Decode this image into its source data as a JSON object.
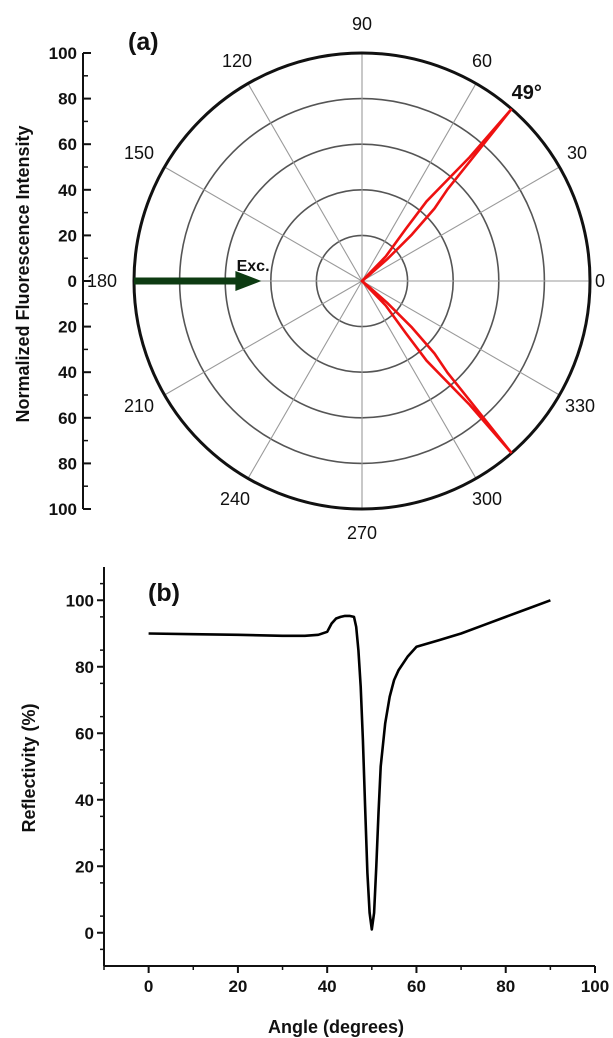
{
  "chart_data": [
    {
      "type": "polar",
      "panel_label": "(a)",
      "ylabel": "Normalized Fluorescence Intensity",
      "r_range": [
        0,
        100
      ],
      "radial_ticks": [
        100,
        80,
        60,
        40,
        20,
        0,
        20,
        40,
        60,
        80,
        100
      ],
      "angle_ticks": [
        0,
        30,
        60,
        90,
        120,
        150,
        180,
        210,
        240,
        270,
        300,
        330
      ],
      "grid": true,
      "annotations": [
        {
          "text": "49°",
          "angle": 49,
          "r": 100
        },
        {
          "text": "Exc.",
          "angle": 180,
          "r": 55
        }
      ],
      "excitation_arrow": {
        "from_angle": 180,
        "r_start": 100,
        "r_end": 45,
        "color": "#0d3b12"
      },
      "series": [
        {
          "color": "#ee1111",
          "points": [
            {
              "angle": 49,
              "r": 100
            },
            {
              "angle": 48,
              "r": 72
            },
            {
              "angle": 47,
              "r": 55
            },
            {
              "angle": 45,
              "r": 45
            },
            {
              "angle": 43,
              "r": 30
            },
            {
              "angle": 41,
              "r": 15
            },
            {
              "angle": 40,
              "r": 5
            },
            {
              "angle": 0,
              "r": 0
            },
            {
              "angle": 46,
              "r": 15
            },
            {
              "angle": 50,
              "r": 30
            },
            {
              "angle": 51,
              "r": 45
            },
            {
              "angle": 50,
              "r": 55
            },
            {
              "angle": 49,
              "r": 72
            },
            {
              "angle": 49,
              "r": 100
            }
          ]
        },
        {
          "color": "#ee1111",
          "points": [
            {
              "angle": 311,
              "r": 100
            },
            {
              "angle": 312,
              "r": 72
            },
            {
              "angle": 313,
              "r": 55
            },
            {
              "angle": 315,
              "r": 45
            },
            {
              "angle": 317,
              "r": 30
            },
            {
              "angle": 319,
              "r": 15
            },
            {
              "angle": 320,
              "r": 5
            },
            {
              "angle": 0,
              "r": 0
            },
            {
              "angle": 314,
              "r": 15
            },
            {
              "angle": 310,
              "r": 30
            },
            {
              "angle": 309,
              "r": 45
            },
            {
              "angle": 310,
              "r": 55
            },
            {
              "angle": 311,
              "r": 72
            },
            {
              "angle": 311,
              "r": 100
            }
          ]
        }
      ]
    },
    {
      "type": "line",
      "panel_label": "(b)",
      "xlabel": "Angle (degrees)",
      "ylabel": "Reflectivity (%)",
      "xlim": [
        -10,
        100
      ],
      "ylim": [
        -10,
        110
      ],
      "xticks": [
        0,
        20,
        40,
        60,
        80,
        100
      ],
      "yticks": [
        0,
        20,
        40,
        60,
        80,
        100
      ],
      "grid": false,
      "series": [
        {
          "color": "#000000",
          "x": [
            0,
            10,
            20,
            30,
            35,
            38,
            40,
            41,
            42,
            43,
            44,
            45,
            46,
            46.5,
            47,
            47.5,
            48,
            48.5,
            49,
            49.5,
            50,
            50.5,
            51,
            51.5,
            52,
            53,
            54,
            55,
            56,
            58,
            60,
            65,
            70,
            75,
            80,
            85,
            90
          ],
          "y": [
            90,
            89.8,
            89.6,
            89.3,
            89.3,
            89.6,
            90.5,
            93,
            94.5,
            95,
            95.3,
            95.3,
            95,
            92,
            85,
            74,
            58,
            38,
            18,
            6,
            1,
            6,
            20,
            36,
            50,
            63,
            71,
            76,
            79,
            83,
            86,
            88,
            90,
            92.5,
            95,
            97.5,
            100
          ]
        }
      ]
    }
  ]
}
